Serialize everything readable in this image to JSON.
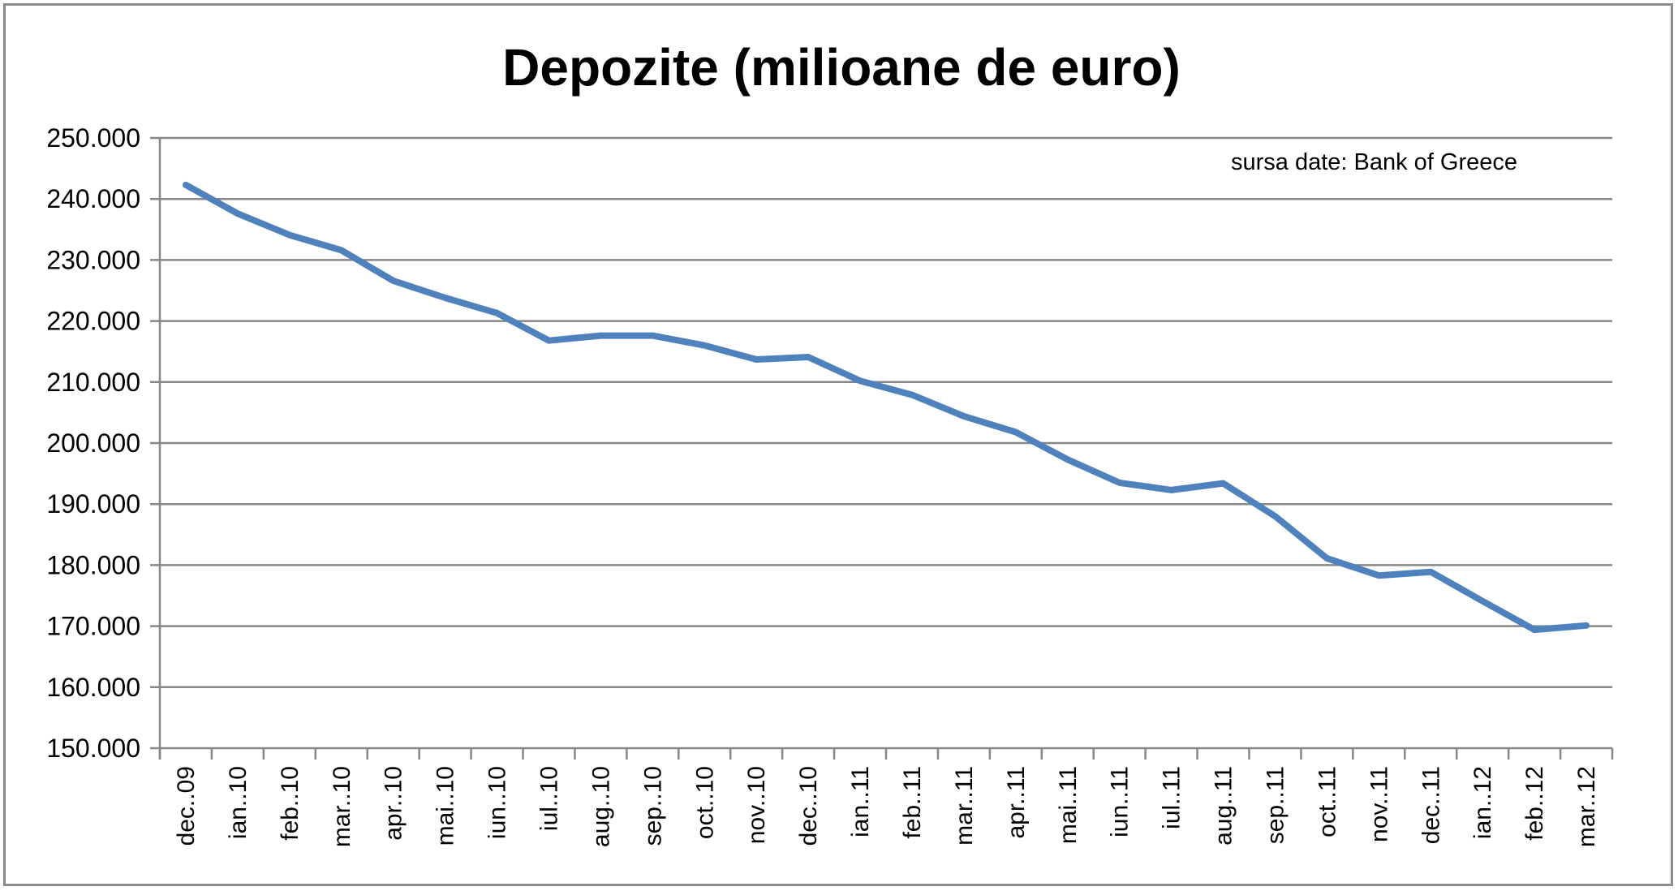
{
  "chart_data": {
    "type": "line",
    "title": "Depozite (milioane de euro)",
    "annotation": "sursa date: Bank of Greece",
    "xlabel": "",
    "ylabel": "",
    "ylim": [
      150000,
      250000
    ],
    "ytick_step": 10000,
    "ytick_labels": [
      "150.000",
      "160.000",
      "170.000",
      "180.000",
      "190.000",
      "200.000",
      "210.000",
      "220.000",
      "230.000",
      "240.000",
      "250.000"
    ],
    "grid": true,
    "legend": "none",
    "categories": [
      "dec..09",
      "ian..10",
      "feb..10",
      "mar..10",
      "apr..10",
      "mai..10",
      "iun..10",
      "iul..10",
      "aug..10",
      "sep..10",
      "oct..10",
      "nov..10",
      "dec..10",
      "ian..11",
      "feb..11",
      "mar..11",
      "apr..11",
      "mai..11",
      "iun..11",
      "iul..11",
      "aug..11",
      "sep..11",
      "oct..11",
      "nov..11",
      "dec..11",
      "ian..12",
      "feb..12",
      "mar..12"
    ],
    "series": [
      {
        "color": "#4f81bd",
        "values": [
          242300,
          237600,
          234100,
          231600,
          226600,
          223800,
          221300,
          216800,
          217600,
          217600,
          216000,
          213700,
          214100,
          210200,
          207900,
          204400,
          201800,
          197300,
          193500,
          192300,
          193400,
          188000,
          181100,
          178300,
          178900,
          174100,
          169400,
          170100
        ]
      }
    ]
  }
}
